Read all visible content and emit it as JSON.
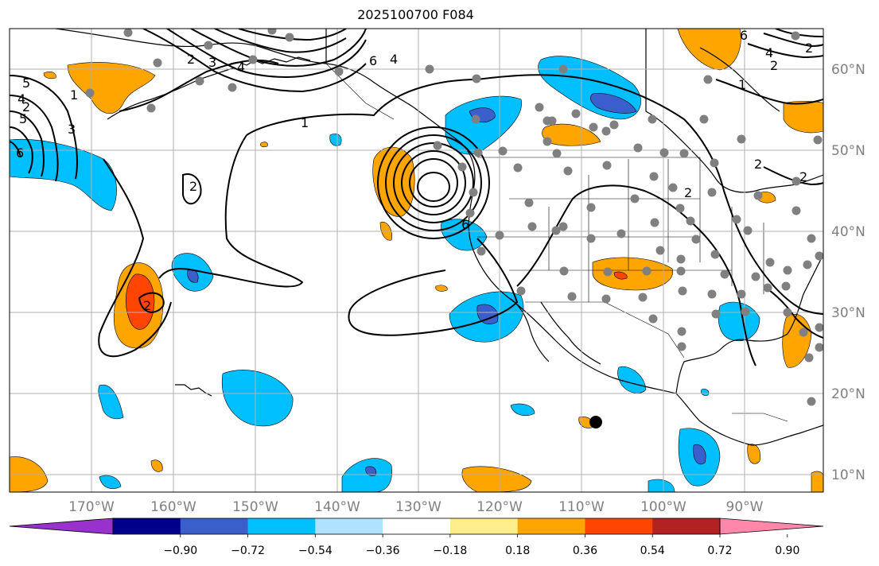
{
  "title": "2025100700 F084",
  "map": {
    "lat_labels": [
      "60°N",
      "50°N",
      "40°N",
      "30°N",
      "20°N",
      "10°N"
    ],
    "lon_labels": [
      "170°W",
      "160°W",
      "150°W",
      "140°W",
      "130°W",
      "120°W",
      "110°W",
      "100°W",
      "90°W"
    ],
    "contour_labels": [
      "1",
      "2",
      "3",
      "4",
      "5",
      "6",
      "2",
      "1",
      "6",
      "4",
      "2",
      "4",
      "6",
      "2",
      "1",
      "2",
      "3",
      "4",
      "5",
      "6",
      "2",
      "2",
      "2",
      "2"
    ],
    "colors": {
      "land_outline": "#000000",
      "grid": "#b0b0b0",
      "station_dot": "#808080",
      "tc_marker": "#000000"
    }
  },
  "colorbar": {
    "ticks": [
      "−0.90",
      "−0.72",
      "−0.54",
      "−0.36",
      "−0.18",
      "0.18",
      "0.36",
      "0.54",
      "0.72",
      "0.90"
    ],
    "colors": [
      "#9932cc",
      "#00008b",
      "#3a5fcd",
      "#00bfff",
      "#b0e2ff",
      "#ffffff",
      "#ffec8b",
      "#ffa500",
      "#ff4500",
      "#b22222",
      "#ff88aa"
    ],
    "extend": "both"
  }
}
